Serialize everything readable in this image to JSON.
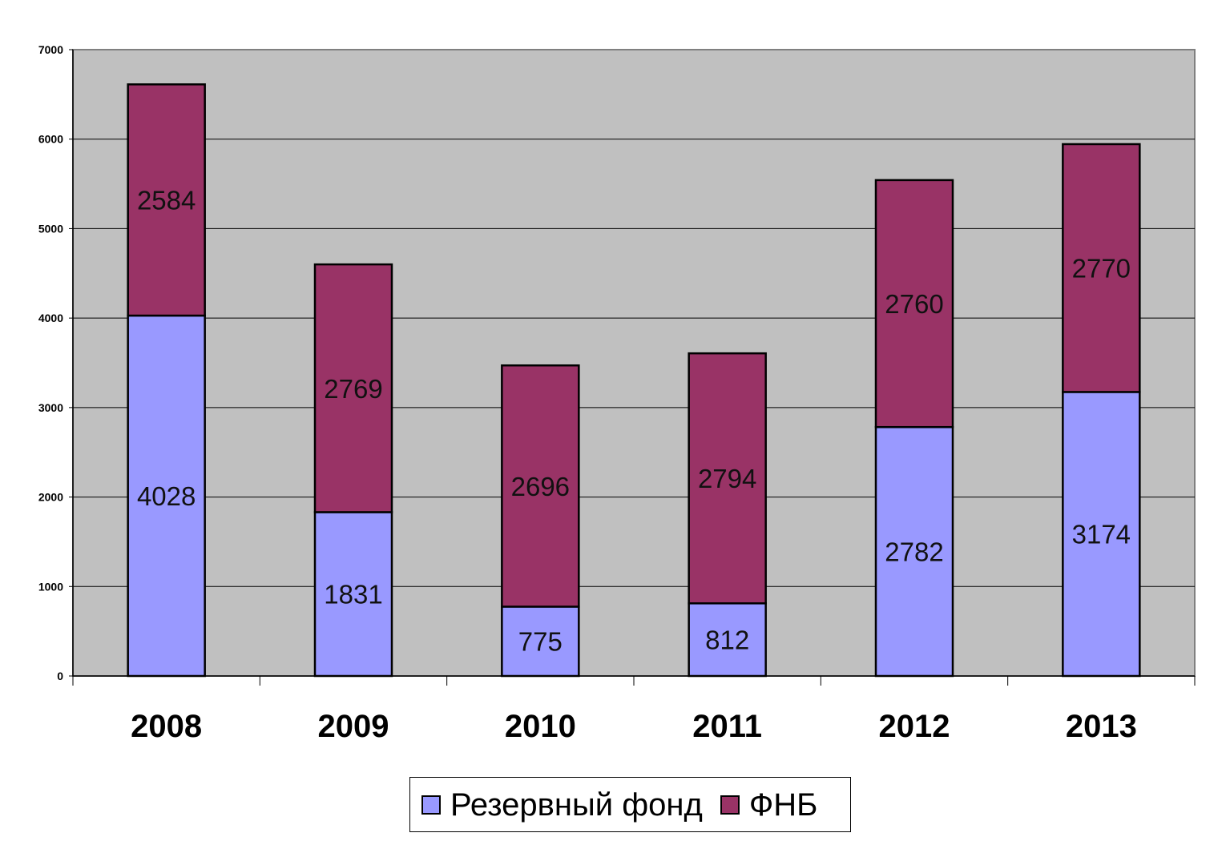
{
  "chart_data": {
    "type": "bar",
    "stacked": true,
    "title": "",
    "xlabel": "",
    "ylabel": "",
    "categories": [
      "2008",
      "2009",
      "2010",
      "2011",
      "2012",
      "2013"
    ],
    "series": [
      {
        "name": "Резервный фонд",
        "values": [
          4028,
          1831,
          775,
          812,
          2782,
          3174
        ],
        "color": "#9999ff"
      },
      {
        "name": "ФНБ",
        "values": [
          2584,
          2769,
          2696,
          2794,
          2760,
          2770
        ],
        "color": "#993366"
      }
    ],
    "ylim": [
      0,
      7000
    ],
    "yticks": [
      0,
      1000,
      2000,
      3000,
      4000,
      5000,
      6000,
      7000
    ],
    "grid": true,
    "plot_background": "#c0c0c0",
    "legend_position": "bottom",
    "data_labels": true
  }
}
